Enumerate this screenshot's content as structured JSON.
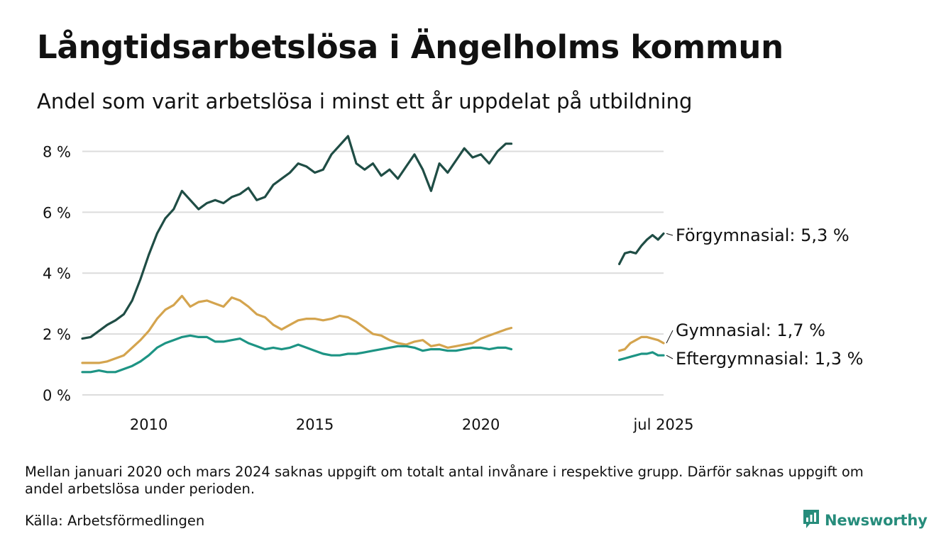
{
  "header": {
    "title": "Långtidsarbetslösa i Ängelholms kommun",
    "subtitle": "Andel som varit arbetslösa i minst ett år uppdelat på utbildning"
  },
  "footer": {
    "note": "Mellan januari 2020 och mars 2024 saknas uppgift om totalt antal invånare i respektive grupp. Därför saknas uppgift om andel arbetslösa under perioden.",
    "source": "Källa: Arbetsförmedlingen",
    "brand": "Newsworthy"
  },
  "colors": {
    "forgymnasial": "#1f4d45",
    "gymnasial": "#d4a44e",
    "eftergymnasial": "#1d9484",
    "grid": "#dcdcdc",
    "brand": "#268c7b"
  },
  "icons": {
    "brand_logo": "newsworthy-logo-icon"
  },
  "chart_data": {
    "type": "line",
    "xlim": [
      "2008-01",
      "2025-07"
    ],
    "ylim": [
      0,
      8.5
    ],
    "y_ticks": [
      0,
      2,
      4,
      6,
      8
    ],
    "y_tick_labels": [
      "0 %",
      "2 %",
      "4 %",
      "6 %",
      "8 %"
    ],
    "x_ticks": [
      "2010-01",
      "2015-01",
      "2020-01",
      "2025-07"
    ],
    "x_tick_labels": [
      "2010",
      "2015",
      "2020",
      "jul 2025"
    ],
    "grid": true,
    "legend": "end labels",
    "series": [
      {
        "name": "Förgymnasial",
        "end_label": "Förgymnasial: 5,3 %",
        "color_key": "forgymnasial",
        "segments": [
          [
            [
              "2008-01",
              1.85
            ],
            [
              "2008-04",
              1.9
            ],
            [
              "2008-07",
              2.1
            ],
            [
              "2008-10",
              2.3
            ],
            [
              "2009-01",
              2.45
            ],
            [
              "2009-04",
              2.65
            ],
            [
              "2009-07",
              3.1
            ],
            [
              "2009-10",
              3.8
            ],
            [
              "2010-01",
              4.6
            ],
            [
              "2010-04",
              5.3
            ],
            [
              "2010-07",
              5.8
            ],
            [
              "2010-10",
              6.1
            ],
            [
              "2011-01",
              6.7
            ],
            [
              "2011-04",
              6.4
            ],
            [
              "2011-07",
              6.1
            ],
            [
              "2011-10",
              6.3
            ],
            [
              "2012-01",
              6.4
            ],
            [
              "2012-04",
              6.3
            ],
            [
              "2012-07",
              6.5
            ],
            [
              "2012-10",
              6.6
            ],
            [
              "2013-01",
              6.8
            ],
            [
              "2013-04",
              6.4
            ],
            [
              "2013-07",
              6.5
            ],
            [
              "2013-10",
              6.9
            ],
            [
              "2014-01",
              7.1
            ],
            [
              "2014-04",
              7.3
            ],
            [
              "2014-07",
              7.6
            ],
            [
              "2014-10",
              7.5
            ],
            [
              "2015-01",
              7.3
            ],
            [
              "2015-04",
              7.4
            ],
            [
              "2015-07",
              7.9
            ],
            [
              "2015-10",
              8.2
            ],
            [
              "2016-01",
              8.5
            ],
            [
              "2016-04",
              7.6
            ],
            [
              "2016-07",
              7.4
            ],
            [
              "2016-10",
              7.6
            ],
            [
              "2017-01",
              7.2
            ],
            [
              "2017-04",
              7.4
            ],
            [
              "2017-07",
              7.1
            ],
            [
              "2017-10",
              7.5
            ],
            [
              "2018-01",
              7.9
            ],
            [
              "2018-04",
              7.4
            ],
            [
              "2018-07",
              6.7
            ],
            [
              "2018-10",
              7.6
            ],
            [
              "2019-01",
              7.3
            ],
            [
              "2019-04",
              7.7
            ],
            [
              "2019-07",
              8.1
            ],
            [
              "2019-10",
              7.8
            ],
            [
              "2020-01",
              7.9
            ],
            [
              "2020-04",
              7.6
            ],
            [
              "2020-07",
              8.0
            ],
            [
              "2020-10",
              8.25
            ],
            [
              "2020-12",
              8.25
            ]
          ],
          [
            [
              "2024-03",
              4.3
            ],
            [
              "2024-05",
              4.65
            ],
            [
              "2024-07",
              4.7
            ],
            [
              "2024-09",
              4.65
            ],
            [
              "2024-11",
              4.9
            ],
            [
              "2025-01",
              5.1
            ],
            [
              "2025-03",
              5.25
            ],
            [
              "2025-05",
              5.1
            ],
            [
              "2025-07",
              5.3
            ]
          ]
        ]
      },
      {
        "name": "Gymnasial",
        "end_label": "Gymnasial: 1,7 %",
        "color_key": "gymnasial",
        "segments": [
          [
            [
              "2008-01",
              1.05
            ],
            [
              "2008-04",
              1.05
            ],
            [
              "2008-07",
              1.05
            ],
            [
              "2008-10",
              1.1
            ],
            [
              "2009-01",
              1.2
            ],
            [
              "2009-04",
              1.3
            ],
            [
              "2009-07",
              1.55
            ],
            [
              "2009-10",
              1.8
            ],
            [
              "2010-01",
              2.1
            ],
            [
              "2010-04",
              2.5
            ],
            [
              "2010-07",
              2.8
            ],
            [
              "2010-10",
              2.95
            ],
            [
              "2011-01",
              3.25
            ],
            [
              "2011-04",
              2.9
            ],
            [
              "2011-07",
              3.05
            ],
            [
              "2011-10",
              3.1
            ],
            [
              "2012-01",
              3.0
            ],
            [
              "2012-04",
              2.9
            ],
            [
              "2012-07",
              3.2
            ],
            [
              "2012-10",
              3.1
            ],
            [
              "2013-01",
              2.9
            ],
            [
              "2013-04",
              2.65
            ],
            [
              "2013-07",
              2.55
            ],
            [
              "2013-10",
              2.3
            ],
            [
              "2014-01",
              2.15
            ],
            [
              "2014-04",
              2.3
            ],
            [
              "2014-07",
              2.45
            ],
            [
              "2014-10",
              2.5
            ],
            [
              "2015-01",
              2.5
            ],
            [
              "2015-04",
              2.45
            ],
            [
              "2015-07",
              2.5
            ],
            [
              "2015-10",
              2.6
            ],
            [
              "2016-01",
              2.55
            ],
            [
              "2016-04",
              2.4
            ],
            [
              "2016-07",
              2.2
            ],
            [
              "2016-10",
              2.0
            ],
            [
              "2017-01",
              1.95
            ],
            [
              "2017-04",
              1.8
            ],
            [
              "2017-07",
              1.7
            ],
            [
              "2017-10",
              1.65
            ],
            [
              "2018-01",
              1.75
            ],
            [
              "2018-04",
              1.8
            ],
            [
              "2018-07",
              1.6
            ],
            [
              "2018-10",
              1.65
            ],
            [
              "2019-01",
              1.55
            ],
            [
              "2019-04",
              1.6
            ],
            [
              "2019-07",
              1.65
            ],
            [
              "2019-10",
              1.7
            ],
            [
              "2020-01",
              1.85
            ],
            [
              "2020-04",
              1.95
            ],
            [
              "2020-07",
              2.05
            ],
            [
              "2020-10",
              2.15
            ],
            [
              "2020-12",
              2.2
            ]
          ],
          [
            [
              "2024-03",
              1.45
            ],
            [
              "2024-05",
              1.5
            ],
            [
              "2024-07",
              1.7
            ],
            [
              "2024-09",
              1.8
            ],
            [
              "2024-11",
              1.9
            ],
            [
              "2025-01",
              1.9
            ],
            [
              "2025-03",
              1.85
            ],
            [
              "2025-05",
              1.8
            ],
            [
              "2025-07",
              1.7
            ]
          ]
        ]
      },
      {
        "name": "Eftergymnasial",
        "end_label": "Eftergymnasial: 1,3 %",
        "color_key": "eftergymnasial",
        "segments": [
          [
            [
              "2008-01",
              0.75
            ],
            [
              "2008-04",
              0.75
            ],
            [
              "2008-07",
              0.8
            ],
            [
              "2008-10",
              0.75
            ],
            [
              "2009-01",
              0.75
            ],
            [
              "2009-04",
              0.85
            ],
            [
              "2009-07",
              0.95
            ],
            [
              "2009-10",
              1.1
            ],
            [
              "2010-01",
              1.3
            ],
            [
              "2010-04",
              1.55
            ],
            [
              "2010-07",
              1.7
            ],
            [
              "2010-10",
              1.8
            ],
            [
              "2011-01",
              1.9
            ],
            [
              "2011-04",
              1.95
            ],
            [
              "2011-07",
              1.9
            ],
            [
              "2011-10",
              1.9
            ],
            [
              "2012-01",
              1.75
            ],
            [
              "2012-04",
              1.75
            ],
            [
              "2012-07",
              1.8
            ],
            [
              "2012-10",
              1.85
            ],
            [
              "2013-01",
              1.7
            ],
            [
              "2013-04",
              1.6
            ],
            [
              "2013-07",
              1.5
            ],
            [
              "2013-10",
              1.55
            ],
            [
              "2014-01",
              1.5
            ],
            [
              "2014-04",
              1.55
            ],
            [
              "2014-07",
              1.65
            ],
            [
              "2014-10",
              1.55
            ],
            [
              "2015-01",
              1.45
            ],
            [
              "2015-04",
              1.35
            ],
            [
              "2015-07",
              1.3
            ],
            [
              "2015-10",
              1.3
            ],
            [
              "2016-01",
              1.35
            ],
            [
              "2016-04",
              1.35
            ],
            [
              "2016-07",
              1.4
            ],
            [
              "2016-10",
              1.45
            ],
            [
              "2017-01",
              1.5
            ],
            [
              "2017-04",
              1.55
            ],
            [
              "2017-07",
              1.6
            ],
            [
              "2017-10",
              1.6
            ],
            [
              "2018-01",
              1.55
            ],
            [
              "2018-04",
              1.45
            ],
            [
              "2018-07",
              1.5
            ],
            [
              "2018-10",
              1.5
            ],
            [
              "2019-01",
              1.45
            ],
            [
              "2019-04",
              1.45
            ],
            [
              "2019-07",
              1.5
            ],
            [
              "2019-10",
              1.55
            ],
            [
              "2020-01",
              1.55
            ],
            [
              "2020-04",
              1.5
            ],
            [
              "2020-07",
              1.55
            ],
            [
              "2020-10",
              1.55
            ],
            [
              "2020-12",
              1.5
            ]
          ],
          [
            [
              "2024-03",
              1.15
            ],
            [
              "2024-05",
              1.2
            ],
            [
              "2024-07",
              1.25
            ],
            [
              "2024-09",
              1.3
            ],
            [
              "2024-11",
              1.35
            ],
            [
              "2025-01",
              1.35
            ],
            [
              "2025-03",
              1.4
            ],
            [
              "2025-05",
              1.3
            ],
            [
              "2025-07",
              1.3
            ]
          ]
        ]
      }
    ]
  }
}
